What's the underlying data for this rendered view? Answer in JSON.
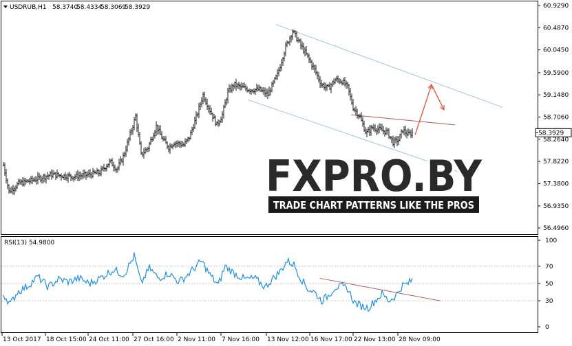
{
  "chart_data": [
    {
      "type": "line",
      "subtype": "price-bars",
      "title": "USDRUB,H1",
      "ohlc": [
        "58.3740",
        "58.4334",
        "58.3069",
        "58.3929"
      ],
      "current_price": "58.3929",
      "y_ticks": [
        "60.9290",
        "60.4870",
        "60.0450",
        "59.5900",
        "59.1480",
        "58.7060",
        "58.2640",
        "57.8220",
        "57.3800",
        "56.9350",
        "56.4960"
      ],
      "ylim": [
        56.496,
        60.929
      ],
      "x_ticks": [
        "13 Oct 2017",
        "18 Oct 15:00",
        "24 Oct 11:00",
        "27 Oct 16:00",
        "2 Nov 11:00",
        "7 Nov 16:00",
        "13 Nov 12:00",
        "16 Nov 17:00",
        "22 Nov 13:00",
        "28 Nov 09:00"
      ],
      "price_keypoints": [
        [
          0,
          57.75
        ],
        [
          8,
          57.22
        ],
        [
          22,
          57.38
        ],
        [
          45,
          57.46
        ],
        [
          70,
          57.56
        ],
        [
          100,
          57.52
        ],
        [
          120,
          57.55
        ],
        [
          140,
          57.6
        ],
        [
          155,
          57.82
        ],
        [
          165,
          57.66
        ],
        [
          175,
          57.95
        ],
        [
          185,
          58.4
        ],
        [
          192,
          58.72
        ],
        [
          200,
          57.95
        ],
        [
          210,
          58.1
        ],
        [
          222,
          58.52
        ],
        [
          232,
          58.25
        ],
        [
          240,
          58.1
        ],
        [
          248,
          58.2
        ],
        [
          262,
          58.15
        ],
        [
          270,
          58.3
        ],
        [
          280,
          58.7
        ],
        [
          290,
          59.15
        ],
        [
          298,
          58.9
        ],
        [
          310,
          58.55
        ],
        [
          318,
          58.75
        ],
        [
          326,
          59.2
        ],
        [
          335,
          59.35
        ],
        [
          345,
          59.3
        ],
        [
          358,
          59.25
        ],
        [
          372,
          59.25
        ],
        [
          384,
          59.15
        ],
        [
          398,
          59.55
        ],
        [
          410,
          60.1
        ],
        [
          420,
          60.42
        ],
        [
          430,
          60.18
        ],
        [
          440,
          59.95
        ],
        [
          452,
          59.65
        ],
        [
          462,
          59.35
        ],
        [
          472,
          59.28
        ],
        [
          482,
          59.45
        ],
        [
          492,
          59.42
        ],
        [
          500,
          59.3
        ],
        [
          508,
          58.9
        ],
        [
          518,
          58.7
        ],
        [
          527,
          58.38
        ],
        [
          536,
          58.5
        ],
        [
          548,
          58.45
        ],
        [
          558,
          58.4
        ],
        [
          566,
          58.2
        ],
        [
          574,
          58.25
        ],
        [
          580,
          58.45
        ],
        [
          588,
          58.35
        ],
        [
          595,
          58.4
        ]
      ],
      "drawings": {
        "channel_upper": [
          [
            396,
            60.55
          ],
          [
            725,
            58.9
          ]
        ],
        "channel_lower": [
          [
            355,
            59.05
          ],
          [
            660,
            57.62
          ]
        ],
        "resistance_line": [
          [
            505,
            58.75
          ],
          [
            656,
            58.55
          ]
        ],
        "forecast_arrow": [
          [
            598,
            58.35
          ],
          [
            622,
            59.35
          ],
          [
            640,
            58.85
          ]
        ]
      },
      "colors": {
        "bars": "#1a1a1a",
        "channel": "#a8c3e0",
        "trendline": "#b05a5a",
        "arrow": "#e8503a"
      }
    },
    {
      "type": "line",
      "title": "RSI(13) 54.9800",
      "ylim": [
        0,
        100
      ],
      "y_ticks": [
        "100",
        "70",
        "50",
        "30",
        "0"
      ],
      "rsi_keypoints": [
        [
          0,
          38
        ],
        [
          10,
          26
        ],
        [
          20,
          40
        ],
        [
          35,
          47
        ],
        [
          50,
          58
        ],
        [
          65,
          46
        ],
        [
          80,
          55
        ],
        [
          95,
          52
        ],
        [
          110,
          56
        ],
        [
          125,
          50
        ],
        [
          140,
          56
        ],
        [
          160,
          66
        ],
        [
          175,
          60
        ],
        [
          190,
          82
        ],
        [
          200,
          50
        ],
        [
          212,
          68
        ],
        [
          225,
          56
        ],
        [
          240,
          62
        ],
        [
          255,
          52
        ],
        [
          265,
          58
        ],
        [
          275,
          66
        ],
        [
          288,
          76
        ],
        [
          300,
          60
        ],
        [
          312,
          48
        ],
        [
          322,
          70
        ],
        [
          335,
          62
        ],
        [
          350,
          55
        ],
        [
          365,
          56
        ],
        [
          380,
          46
        ],
        [
          392,
          56
        ],
        [
          402,
          64
        ],
        [
          412,
          76
        ],
        [
          422,
          72
        ],
        [
          432,
          56
        ],
        [
          442,
          44
        ],
        [
          452,
          40
        ],
        [
          462,
          30
        ],
        [
          472,
          36
        ],
        [
          482,
          46
        ],
        [
          492,
          46
        ],
        [
          500,
          44
        ],
        [
          510,
          28
        ],
        [
          520,
          24
        ],
        [
          530,
          22
        ],
        [
          540,
          30
        ],
        [
          550,
          38
        ],
        [
          560,
          30
        ],
        [
          570,
          36
        ],
        [
          580,
          48
        ],
        [
          588,
          50
        ],
        [
          595,
          55
        ]
      ],
      "trendline": [
        [
          460,
          56
        ],
        [
          635,
          30
        ]
      ],
      "colors": {
        "rsi": "#1e8fe6",
        "trendline": "#b05a5a"
      }
    }
  ],
  "watermark": {
    "brand": "FXPRO.BY",
    "tagline": "TRADE CHART PATTERNS LIKE THE PROS"
  }
}
